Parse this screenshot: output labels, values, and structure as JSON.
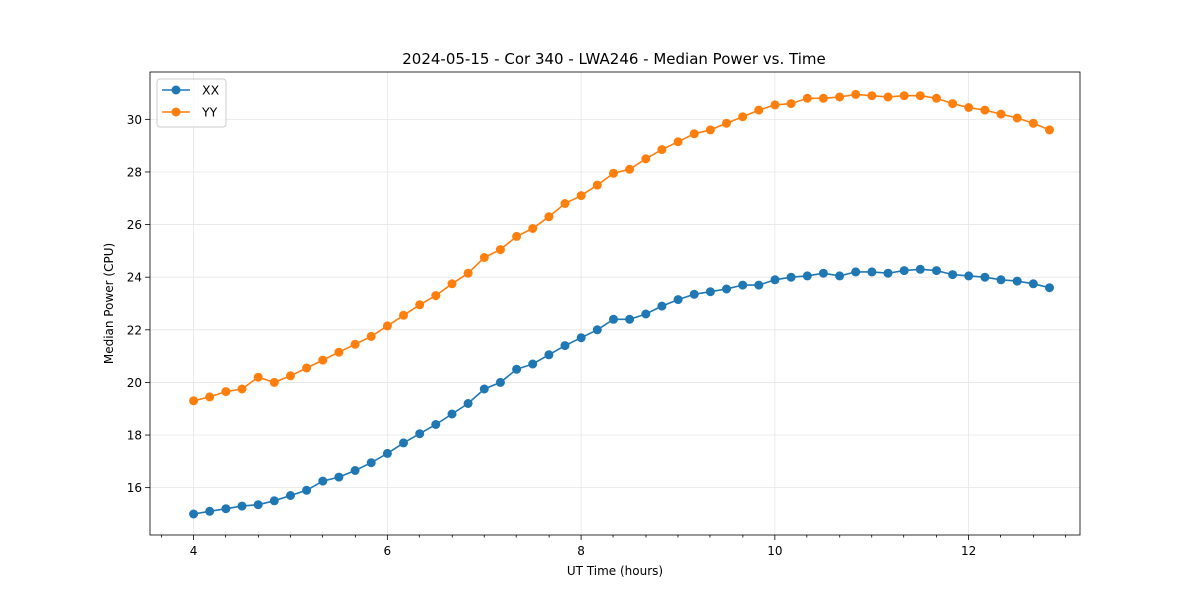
{
  "chart_data": {
    "type": "line",
    "title": "2024-05-15 - Cor 340 - LWA246 - Median Power vs. Time",
    "xlabel": "UT Time (hours)",
    "ylabel": "Median Power (CPU)",
    "xlim": [
      3.55,
      13.15
    ],
    "ylim": [
      14.2,
      31.8
    ],
    "xticks": [
      4,
      6,
      8,
      10,
      12
    ],
    "xminor_ticks": [
      3.67,
      4.33,
      4.67,
      5.0,
      5.33,
      5.67,
      6.33,
      6.67,
      7.0,
      7.33,
      7.67,
      8.33,
      8.67,
      9.0,
      9.33,
      9.67,
      10.33,
      10.67,
      11.0,
      11.33,
      11.67,
      12.33,
      12.67,
      13.0
    ],
    "yticks": [
      16,
      18,
      20,
      22,
      24,
      26,
      28,
      30
    ],
    "grid": true,
    "legend_position": "upper-left",
    "series": [
      {
        "name": "XX",
        "color": "#1f77b4",
        "x_start": 4.0,
        "x_step": 0.1667,
        "values": [
          15.0,
          15.1,
          15.2,
          15.3,
          15.35,
          15.5,
          15.7,
          15.9,
          16.25,
          16.4,
          16.65,
          16.95,
          17.3,
          17.7,
          18.05,
          18.4,
          18.8,
          19.2,
          19.75,
          20.0,
          20.5,
          20.7,
          21.05,
          21.4,
          21.7,
          22.0,
          22.4,
          22.4,
          22.6,
          22.9,
          23.15,
          23.35,
          23.45,
          23.55,
          23.7,
          23.7,
          23.9,
          24.0,
          24.05,
          24.15,
          24.05,
          24.2,
          24.2,
          24.15,
          24.25,
          24.3,
          24.25,
          24.1,
          24.05,
          24.0,
          23.9,
          23.85,
          23.75,
          23.6
        ]
      },
      {
        "name": "YY",
        "color": "#ff7f0e",
        "x_start": 4.0,
        "x_step": 0.1667,
        "values": [
          19.3,
          19.45,
          19.65,
          19.75,
          20.2,
          20.0,
          20.25,
          20.55,
          20.85,
          21.15,
          21.45,
          21.75,
          22.15,
          22.55,
          22.95,
          23.3,
          23.75,
          24.15,
          24.75,
          25.05,
          25.55,
          25.85,
          26.3,
          26.8,
          27.1,
          27.5,
          27.95,
          28.1,
          28.5,
          28.85,
          29.15,
          29.45,
          29.6,
          29.85,
          30.1,
          30.35,
          30.55,
          30.6,
          30.8,
          30.8,
          30.85,
          30.95,
          30.9,
          30.85,
          30.9,
          30.9,
          30.8,
          30.6,
          30.45,
          30.35,
          30.2,
          30.05,
          29.85,
          29.6
        ]
      }
    ]
  }
}
